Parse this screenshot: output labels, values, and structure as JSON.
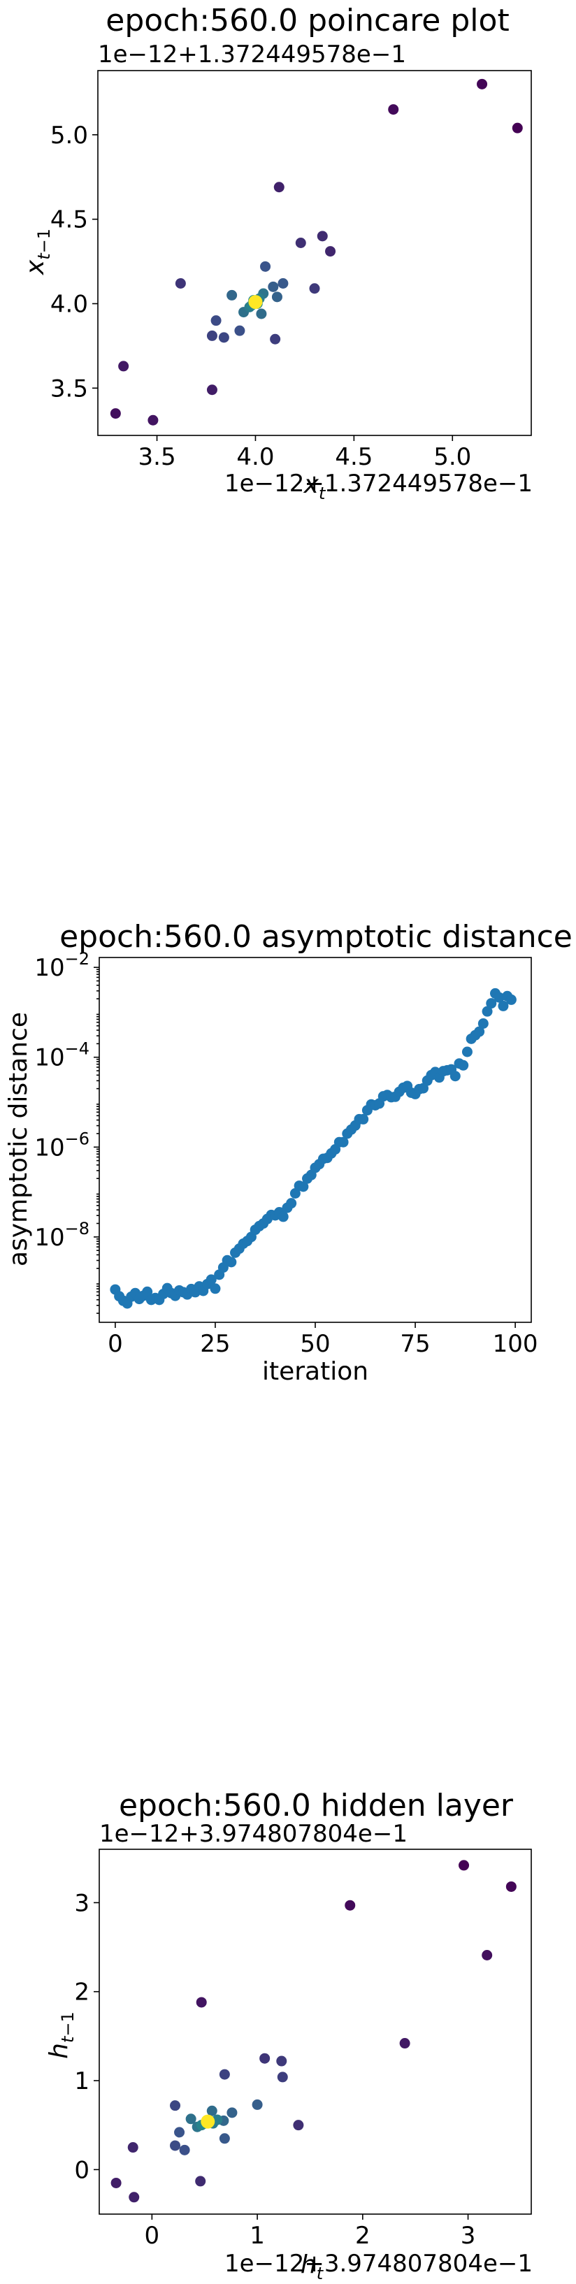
{
  "chart_data": [
    {
      "type": "scatter",
      "title": "epoch:560.0 poincare plot",
      "xlabel": "x_t",
      "ylabel": "x_{t-1}",
      "x_offset_label": "1e−12+1.372449578e−1",
      "y_offset_label": "1e−12+1.372449578e−1",
      "xlim": [
        3.2,
        5.4
      ],
      "ylim": [
        3.22,
        5.38
      ],
      "xticks": [
        3.5,
        4.0,
        4.5,
        5.0
      ],
      "xtick_labels": [
        "3.5",
        "4.0",
        "4.5",
        "5.0"
      ],
      "yticks": [
        3.5,
        4.0,
        4.5,
        5.0
      ],
      "ytick_labels": [
        "3.5",
        "4.0",
        "4.5",
        "5.0"
      ],
      "colormap": "viridis",
      "colors": {
        "early": "#440154",
        "mid": "#3b528b",
        "late": "#21918c",
        "final": "#fde725"
      },
      "points": [
        {
          "x": 5.33,
          "y": 5.04,
          "c": 0.0
        },
        {
          "x": 5.15,
          "y": 5.3,
          "c": 0.02
        },
        {
          "x": 4.7,
          "y": 5.15,
          "c": 0.04
        },
        {
          "x": 3.29,
          "y": 3.35,
          "c": 0.06
        },
        {
          "x": 3.48,
          "y": 3.31,
          "c": 0.08
        },
        {
          "x": 3.33,
          "y": 3.63,
          "c": 0.1
        },
        {
          "x": 3.78,
          "y": 3.49,
          "c": 0.12
        },
        {
          "x": 4.12,
          "y": 4.69,
          "c": 0.14
        },
        {
          "x": 4.38,
          "y": 4.31,
          "c": 0.16
        },
        {
          "x": 4.34,
          "y": 4.4,
          "c": 0.18
        },
        {
          "x": 4.23,
          "y": 4.36,
          "c": 0.2
        },
        {
          "x": 3.62,
          "y": 4.12,
          "c": 0.22
        },
        {
          "x": 4.3,
          "y": 4.09,
          "c": 0.24
        },
        {
          "x": 4.1,
          "y": 3.79,
          "c": 0.26
        },
        {
          "x": 3.78,
          "y": 3.81,
          "c": 0.28
        },
        {
          "x": 3.84,
          "y": 3.8,
          "c": 0.3
        },
        {
          "x": 3.8,
          "y": 3.9,
          "c": 0.32
        },
        {
          "x": 3.92,
          "y": 3.84,
          "c": 0.34
        },
        {
          "x": 4.05,
          "y": 4.22,
          "c": 0.36
        },
        {
          "x": 4.14,
          "y": 4.12,
          "c": 0.38
        },
        {
          "x": 4.09,
          "y": 4.1,
          "c": 0.4
        },
        {
          "x": 4.11,
          "y": 4.04,
          "c": 0.42
        },
        {
          "x": 3.88,
          "y": 4.05,
          "c": 0.44
        },
        {
          "x": 4.03,
          "y": 3.94,
          "c": 0.46
        },
        {
          "x": 3.94,
          "y": 3.95,
          "c": 0.48
        },
        {
          "x": 4.04,
          "y": 4.06,
          "c": 0.5
        },
        {
          "x": 3.97,
          "y": 3.98,
          "c": 0.52
        },
        {
          "x": 4.02,
          "y": 4.03,
          "c": 0.54
        },
        {
          "x": 3.98,
          "y": 3.99,
          "c": 0.56
        },
        {
          "x": 4.01,
          "y": 4.0,
          "c": 0.58
        },
        {
          "x": 3.99,
          "y": 4.02,
          "c": 0.6
        },
        {
          "x": 4.0,
          "y": 4.01,
          "c": 1.0
        }
      ]
    },
    {
      "type": "scatter",
      "title": "epoch:560.0 asymptotic distance",
      "xlabel": "iteration",
      "ylabel": "asymptotic distance",
      "yscale": "log",
      "xlim": [
        -4,
        104
      ],
      "ylim_log10": [
        -9.9,
        -1.78
      ],
      "xticks": [
        0,
        25,
        50,
        75,
        100
      ],
      "xtick_labels": [
        "0",
        "25",
        "50",
        "75",
        "100"
      ],
      "yticks_log10": [
        -8,
        -6,
        -4,
        -2
      ],
      "ytick_labels": [
        "10−8",
        "10−6",
        "10−4",
        "10−2"
      ],
      "color": "#1f77b4",
      "x": [
        0,
        1,
        2,
        3,
        4,
        5,
        6,
        7,
        8,
        9,
        10,
        11,
        12,
        13,
        14,
        15,
        16,
        17,
        18,
        19,
        20,
        21,
        22,
        23,
        24,
        25,
        26,
        27,
        28,
        29,
        30,
        31,
        32,
        33,
        34,
        35,
        36,
        37,
        38,
        39,
        40,
        41,
        42,
        43,
        44,
        45,
        46,
        47,
        48,
        49,
        50,
        51,
        52,
        53,
        54,
        55,
        56,
        57,
        58,
        59,
        60,
        61,
        62,
        63,
        64,
        65,
        66,
        67,
        68,
        69,
        70,
        71,
        72,
        73,
        74,
        75,
        76,
        77,
        78,
        79,
        80,
        81,
        82,
        83,
        84,
        85,
        86,
        87,
        88,
        89,
        90,
        91,
        92,
        93,
        94,
        95,
        96,
        97,
        98,
        99
      ],
      "log10_y": [
        -9.17,
        -9.32,
        -9.42,
        -9.48,
        -9.33,
        -9.25,
        -9.38,
        -9.31,
        -9.22,
        -9.4,
        -9.36,
        -9.4,
        -9.27,
        -9.14,
        -9.25,
        -9.31,
        -9.19,
        -9.23,
        -9.28,
        -9.16,
        -9.23,
        -9.1,
        -9.2,
        -9.05,
        -8.95,
        -9.15,
        -8.84,
        -8.68,
        -8.52,
        -8.56,
        -8.35,
        -8.26,
        -8.15,
        -8.09,
        -8.0,
        -7.84,
        -7.76,
        -7.7,
        -7.6,
        -7.51,
        -7.52,
        -7.45,
        -7.55,
        -7.35,
        -7.25,
        -7.03,
        -6.86,
        -6.88,
        -6.7,
        -6.62,
        -6.46,
        -6.38,
        -6.26,
        -6.24,
        -6.14,
        -6.05,
        -5.89,
        -5.89,
        -5.7,
        -5.61,
        -5.52,
        -5.38,
        -5.38,
        -5.18,
        -5.05,
        -5.07,
        -5.03,
        -4.87,
        -4.84,
        -4.89,
        -4.88,
        -4.77,
        -4.68,
        -4.64,
        -4.79,
        -4.82,
        -4.71,
        -4.69,
        -4.52,
        -4.4,
        -4.33,
        -4.45,
        -4.31,
        -4.29,
        -4.27,
        -4.42,
        -4.14,
        -4.18,
        -3.88,
        -3.59,
        -3.51,
        -3.43,
        -3.25,
        -2.98,
        -2.8,
        -2.58,
        -2.67,
        -2.86,
        -2.64,
        -2.72
      ]
    },
    {
      "type": "scatter",
      "title": "epoch:560.0 hidden layer",
      "xlabel": "h_t",
      "ylabel": "h_{t-1}",
      "x_offset_label": "1e−12+3.974807804e−1",
      "y_offset_label": "1e−12+3.974807804e−1",
      "xlim": [
        -0.5,
        3.6
      ],
      "ylim": [
        -0.5,
        3.6
      ],
      "xticks": [
        0,
        1,
        2,
        3
      ],
      "xtick_labels": [
        "0",
        "1",
        "2",
        "3"
      ],
      "yticks": [
        0,
        1,
        2,
        3
      ],
      "ytick_labels": [
        "0",
        "1",
        "2",
        "3"
      ],
      "colormap": "viridis",
      "colors": {
        "early": "#440154",
        "mid": "#3b528b",
        "late": "#21918c",
        "final": "#fde725"
      },
      "points": [
        {
          "x": 2.96,
          "y": 3.42,
          "c": 0.0
        },
        {
          "x": 3.41,
          "y": 3.18,
          "c": 0.02
        },
        {
          "x": 1.88,
          "y": 2.97,
          "c": 0.04
        },
        {
          "x": 3.18,
          "y": 2.41,
          "c": 0.06
        },
        {
          "x": 0.47,
          "y": 1.88,
          "c": 0.08
        },
        {
          "x": 2.4,
          "y": 1.42,
          "c": 0.1
        },
        {
          "x": -0.34,
          "y": -0.15,
          "c": 0.12
        },
        {
          "x": -0.17,
          "y": -0.31,
          "c": 0.14
        },
        {
          "x": -0.18,
          "y": 0.25,
          "c": 0.16
        },
        {
          "x": 0.46,
          "y": -0.13,
          "c": 0.18
        },
        {
          "x": 1.39,
          "y": 0.5,
          "c": 0.2
        },
        {
          "x": 1.07,
          "y": 1.25,
          "c": 0.22
        },
        {
          "x": 1.23,
          "y": 1.22,
          "c": 0.24
        },
        {
          "x": 1.24,
          "y": 1.04,
          "c": 0.26
        },
        {
          "x": 0.69,
          "y": 1.07,
          "c": 0.28
        },
        {
          "x": 0.22,
          "y": 0.72,
          "c": 0.3
        },
        {
          "x": 0.22,
          "y": 0.27,
          "c": 0.32
        },
        {
          "x": 0.31,
          "y": 0.22,
          "c": 0.34
        },
        {
          "x": 0.26,
          "y": 0.42,
          "c": 0.36
        },
        {
          "x": 0.69,
          "y": 0.35,
          "c": 0.38
        },
        {
          "x": 1.0,
          "y": 0.73,
          "c": 0.4
        },
        {
          "x": 0.76,
          "y": 0.64,
          "c": 0.42
        },
        {
          "x": 0.68,
          "y": 0.55,
          "c": 0.44
        },
        {
          "x": 0.57,
          "y": 0.66,
          "c": 0.46
        },
        {
          "x": 0.37,
          "y": 0.57,
          "c": 0.48
        },
        {
          "x": 0.43,
          "y": 0.48,
          "c": 0.5
        },
        {
          "x": 0.58,
          "y": 0.52,
          "c": 0.52
        },
        {
          "x": 0.62,
          "y": 0.56,
          "c": 0.54
        },
        {
          "x": 0.47,
          "y": 0.5,
          "c": 0.56
        },
        {
          "x": 0.55,
          "y": 0.55,
          "c": 0.58
        },
        {
          "x": 0.51,
          "y": 0.52,
          "c": 0.6
        },
        {
          "x": 0.53,
          "y": 0.54,
          "c": 1.0
        }
      ]
    }
  ]
}
